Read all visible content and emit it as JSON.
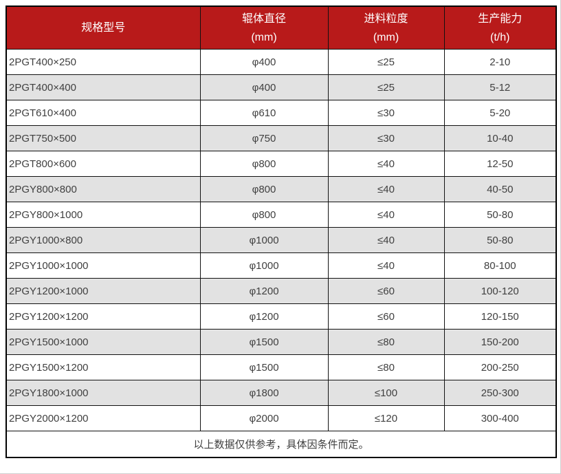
{
  "colors": {
    "header_bg": "#b81a1a",
    "header_text": "#ffffff",
    "row_bg": "#ffffff",
    "row_alt_bg": "#e2e2e2",
    "body_text": "#404040",
    "border": "#111111"
  },
  "table": {
    "headers": [
      {
        "line1": "规格型号",
        "line2": ""
      },
      {
        "line1": "辊体直径",
        "line2": "(mm)"
      },
      {
        "line1": "进料粒度",
        "line2": "(mm)"
      },
      {
        "line1": "生产能力",
        "line2": "(t/h)"
      }
    ],
    "rows": [
      [
        "2PGT400×250",
        "φ400",
        "≤25",
        "2-10"
      ],
      [
        "2PGT400×400",
        "φ400",
        "≤25",
        "5-12"
      ],
      [
        "2PGT610×400",
        "φ610",
        "≤30",
        "5-20"
      ],
      [
        "2PGT750×500",
        "φ750",
        "≤30",
        "10-40"
      ],
      [
        "2PGT800×600",
        "φ800",
        "≤40",
        "12-50"
      ],
      [
        "2PGY800×800",
        "φ800",
        "≤40",
        "40-50"
      ],
      [
        "2PGY800×1000",
        "φ800",
        "≤40",
        "50-80"
      ],
      [
        "2PGY1000×800",
        "φ1000",
        "≤40",
        "50-80"
      ],
      [
        "2PGY1000×1000",
        "φ1000",
        "≤40",
        "80-100"
      ],
      [
        "2PGY1200×1000",
        "φ1200",
        "≤60",
        "100-120"
      ],
      [
        "2PGY1200×1200",
        "φ1200",
        "≤60",
        "120-150"
      ],
      [
        "2PGY1500×1000",
        "φ1500",
        "≤80",
        "150-200"
      ],
      [
        "2PGY1500×1200",
        "φ1500",
        "≤80",
        "200-250"
      ],
      [
        "2PGY1800×1000",
        "φ1800",
        "≤100",
        "250-300"
      ],
      [
        "2PGY2000×1200",
        "φ2000",
        "≤120",
        "300-400"
      ]
    ],
    "footer_note": "以上数据仅供参考，具体因条件而定。"
  },
  "chart_data": {
    "type": "table",
    "title": "",
    "columns": [
      "规格型号",
      "辊体直径 (mm)",
      "进料粒度 (mm)",
      "生产能力 (t/h)"
    ],
    "rows": [
      [
        "2PGT400×250",
        "φ400",
        "≤25",
        "2-10"
      ],
      [
        "2PGT400×400",
        "φ400",
        "≤25",
        "5-12"
      ],
      [
        "2PGT610×400",
        "φ610",
        "≤30",
        "5-20"
      ],
      [
        "2PGT750×500",
        "φ750",
        "≤30",
        "10-40"
      ],
      [
        "2PGT800×600",
        "φ800",
        "≤40",
        "12-50"
      ],
      [
        "2PGY800×800",
        "φ800",
        "≤40",
        "40-50"
      ],
      [
        "2PGY800×1000",
        "φ800",
        "≤40",
        "50-80"
      ],
      [
        "2PGY1000×800",
        "φ1000",
        "≤40",
        "50-80"
      ],
      [
        "2PGY1000×1000",
        "φ1000",
        "≤40",
        "80-100"
      ],
      [
        "2PGY1200×1000",
        "φ1200",
        "≤60",
        "100-120"
      ],
      [
        "2PGY1200×1200",
        "φ1200",
        "≤60",
        "120-150"
      ],
      [
        "2PGY1500×1000",
        "φ1500",
        "≤80",
        "150-200"
      ],
      [
        "2PGY1500×1200",
        "φ1500",
        "≤80",
        "200-250"
      ],
      [
        "2PGY1800×1000",
        "φ1800",
        "≤100",
        "250-300"
      ],
      [
        "2PGY2000×1200",
        "φ2000",
        "≤120",
        "300-400"
      ]
    ],
    "note": "以上数据仅供参考，具体因条件而定。"
  }
}
